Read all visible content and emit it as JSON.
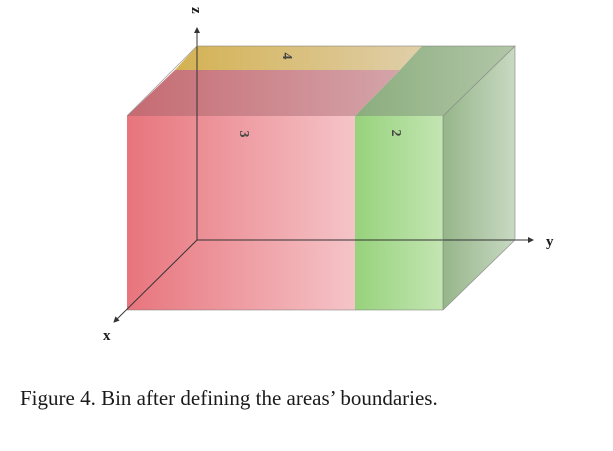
{
  "figure": {
    "axes": {
      "x_label": "x",
      "y_label": "y",
      "z_label": "z"
    },
    "areas": [
      {
        "id": "area-2",
        "label": "2",
        "color": "#8fcf78"
      },
      {
        "id": "area-3",
        "label": "3",
        "color": "#e8707a"
      },
      {
        "id": "area-4",
        "label": "4",
        "color": "#d9b64a"
      }
    ],
    "colors": {
      "red": "#e8707a",
      "pink": "#f3bcc0",
      "green": "#9fd68a",
      "green_dark": "#8aaf7e",
      "gold": "#d6b34c",
      "gray_green": "#9fb897"
    }
  },
  "caption": "Figure 4. Bin after defining the areas’ boundaries."
}
